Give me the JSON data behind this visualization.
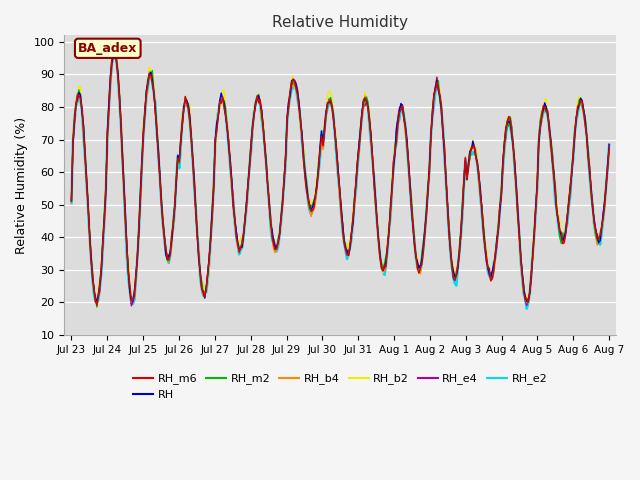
{
  "title": "Relative Humidity",
  "ylabel": "Relative Humidity (%)",
  "ylim": [
    10,
    102
  ],
  "yticks": [
    10,
    20,
    30,
    40,
    50,
    60,
    70,
    80,
    90,
    100
  ],
  "plot_bg": "#dcdcdc",
  "fig_bg": "#f5f5f5",
  "annotation_text": "BA_adex",
  "annotation_color": "#8b0000",
  "annotation_bg": "#ffffcc",
  "series_colors": {
    "RH_m6": "#dd0000",
    "RH": "#0000cc",
    "RH_m2": "#00bb00",
    "RH_b4": "#ff8800",
    "RH_b2": "#eeee00",
    "RH_e4": "#aa00aa",
    "RH_e2": "#00ddee"
  },
  "series_order": [
    "RH_e2",
    "RH_b2",
    "RH_e4",
    "RH_b4",
    "RH_m2",
    "RH",
    "RH_m6"
  ],
  "legend_order": [
    "RH_m6",
    "RH",
    "RH_m2",
    "RH_b4",
    "RH_b2",
    "RH_e4",
    "RH_e2"
  ],
  "date_labels": [
    "Jul 23",
    "Jul 24",
    "Jul 25",
    "Jul 26",
    "Jul 27",
    "Jul 28",
    "Jul 29",
    "Jul 30",
    "Jul 31",
    "Aug 1",
    "Aug 2",
    "Aug 3",
    "Aug 4",
    "Aug 5",
    "Aug 6",
    "Aug 7"
  ],
  "n_days": 15,
  "pts_per_day": 24
}
